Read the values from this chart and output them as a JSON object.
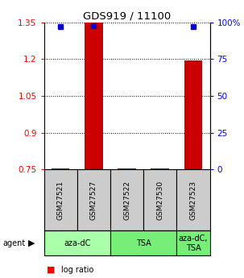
{
  "title": "GDS919 / 11100",
  "samples": [
    "GSM27521",
    "GSM27527",
    "GSM27522",
    "GSM27530",
    "GSM27523"
  ],
  "log_ratios": [
    0.754,
    1.348,
    0.754,
    0.754,
    1.195
  ],
  "percentile_ranks": [
    97.0,
    97.5,
    null,
    null,
    97.0
  ],
  "ylim_left": [
    0.75,
    1.35
  ],
  "ylim_right": [
    0,
    100
  ],
  "yticks_left": [
    0.75,
    0.9,
    1.05,
    1.2,
    1.35
  ],
  "yticks_right": [
    0,
    25,
    50,
    75,
    100
  ],
  "ytick_labels_right": [
    "0",
    "25",
    "50",
    "75",
    "100%"
  ],
  "bar_color": "#cc0000",
  "dot_color": "#0000cc",
  "bar_width": 0.55,
  "agent_groups": [
    {
      "label": "aza-dC",
      "spans": [
        0,
        2
      ],
      "color": "#aaffaa"
    },
    {
      "label": "TSA",
      "spans": [
        2,
        4
      ],
      "color": "#77ee77"
    },
    {
      "label": "aza-dC,\nTSA",
      "spans": [
        4,
        5
      ],
      "color": "#77ee77"
    }
  ],
  "background_color": "#ffffff",
  "sample_box_color": "#cccccc",
  "ref_value": 0.75,
  "dot_size": 5
}
